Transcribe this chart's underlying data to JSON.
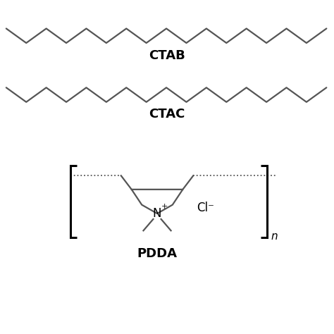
{
  "bg_color": "#ffffff",
  "line_color": "#555555",
  "text_color": "#000000",
  "label_fontsize": 13,
  "label_fontweight": "bold",
  "ctab_label": "CTAB",
  "ctac_label": "CTAC",
  "pdda_label": "PDDA",
  "n_label": "n",
  "Cl_label": "Cl⁻",
  "figsize": [
    4.74,
    4.74
  ],
  "dpi": 100
}
